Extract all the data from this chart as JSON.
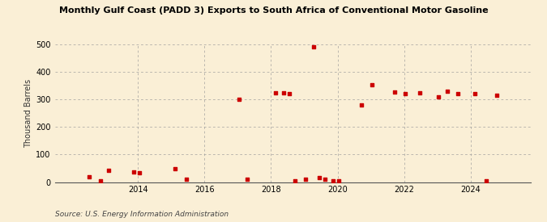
{
  "title": "Monthly Gulf Coast (PADD 3) Exports to South Africa of Conventional Motor Gasoline",
  "ylabel": "Thousand Barrels",
  "source": "Source: U.S. Energy Information Administration",
  "background_color": "#faefd6",
  "point_color": "#cc0000",
  "grid_color": "#999999",
  "ylim": [
    0,
    500
  ],
  "yticks": [
    0,
    100,
    200,
    300,
    400,
    500
  ],
  "xlim": [
    2011.5,
    2025.8
  ],
  "xtick_years": [
    2014,
    2016,
    2018,
    2020,
    2022,
    2024
  ],
  "data_points": [
    {
      "year": 2012,
      "month": 7,
      "value": 18
    },
    {
      "year": 2012,
      "month": 11,
      "value": 5
    },
    {
      "year": 2013,
      "month": 2,
      "value": 42
    },
    {
      "year": 2013,
      "month": 11,
      "value": 37
    },
    {
      "year": 2014,
      "month": 1,
      "value": 35
    },
    {
      "year": 2015,
      "month": 2,
      "value": 48
    },
    {
      "year": 2015,
      "month": 6,
      "value": 10
    },
    {
      "year": 2017,
      "month": 1,
      "value": 300
    },
    {
      "year": 2017,
      "month": 4,
      "value": 10
    },
    {
      "year": 2018,
      "month": 2,
      "value": 325
    },
    {
      "year": 2018,
      "month": 5,
      "value": 325
    },
    {
      "year": 2018,
      "month": 7,
      "value": 320
    },
    {
      "year": 2018,
      "month": 9,
      "value": 5
    },
    {
      "year": 2019,
      "month": 1,
      "value": 10
    },
    {
      "year": 2019,
      "month": 4,
      "value": 490
    },
    {
      "year": 2019,
      "month": 6,
      "value": 15
    },
    {
      "year": 2019,
      "month": 8,
      "value": 10
    },
    {
      "year": 2019,
      "month": 11,
      "value": 3
    },
    {
      "year": 2020,
      "month": 1,
      "value": 5
    },
    {
      "year": 2020,
      "month": 9,
      "value": 280
    },
    {
      "year": 2021,
      "month": 1,
      "value": 353
    },
    {
      "year": 2021,
      "month": 9,
      "value": 328
    },
    {
      "year": 2022,
      "month": 1,
      "value": 320
    },
    {
      "year": 2022,
      "month": 6,
      "value": 325
    },
    {
      "year": 2023,
      "month": 1,
      "value": 310
    },
    {
      "year": 2023,
      "month": 4,
      "value": 330
    },
    {
      "year": 2023,
      "month": 8,
      "value": 320
    },
    {
      "year": 2024,
      "month": 2,
      "value": 320
    },
    {
      "year": 2024,
      "month": 6,
      "value": 5
    },
    {
      "year": 2024,
      "month": 10,
      "value": 315
    }
  ]
}
